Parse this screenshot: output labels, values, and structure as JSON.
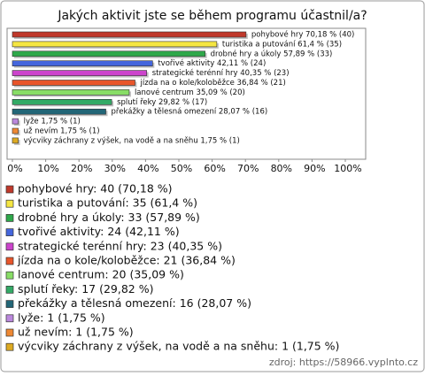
{
  "chart_data": {
    "type": "bar",
    "orientation": "horizontal",
    "title": "Jakých aktivit jste se během programu účastnil/a?",
    "categories": [
      "pohybové hry",
      "turistika a putování",
      "drobné hry a úkoly",
      "tvořivé aktivity",
      "strategické terénní hry",
      "jízda na o kole/koloběžce",
      "lanové centrum",
      "splutí řeky",
      "překážky a tělesná omezení",
      "lyže",
      "už nevím",
      "výcviky záchrany z výšek, na vodě a na sněhu"
    ],
    "values": [
      70.18,
      61.4,
      57.89,
      42.11,
      40.35,
      36.84,
      35.09,
      29.82,
      28.07,
      1.75,
      1.75,
      1.75
    ],
    "value_labels": [
      "pohybové hry 70,18 % (40)",
      "turistika a putování 61,4 % (35)",
      "drobné hry a úkoly 57,89 % (33)",
      "tvořivé aktivity 42,11 % (24)",
      "strategické terénní hry 40,35 % (23)",
      "jízda na o kole/koloběžce 36,84 % (21)",
      "lanové centrum 35,09 % (20)",
      "splutí řeky 29,82 % (17)",
      "překážky a tělesná omezení 28,07 % (16)",
      "lyže 1,75 % (1)",
      "už nevím 1,75 % (1)",
      "výcviky záchrany z výšek, na vodě a na sněhu 1,75 % (1)"
    ],
    "colors": [
      "#c0392b",
      "#f5e642",
      "#2ea84a",
      "#4466dd",
      "#cc44cc",
      "#e8552a",
      "#88dd66",
      "#33aa66",
      "#226677",
      "#bb88dd",
      "#ee8833",
      "#ddaa22"
    ],
    "legend": [
      "pohybové hry: 40 (70,18 %)",
      "turistika a putování: 35 (61,4 %)",
      "drobné hry a úkoly: 33 (57,89 %)",
      "tvořivé aktivity: 24 (42,11 %)",
      "strategické terénní hry: 23 (40,35 %)",
      "jízda na o kole/koloběžce: 21 (36,84 %)",
      "lanové centrum: 20 (35,09 %)",
      "splutí řeky: 17 (29,82 %)",
      "překážky a tělesná omezení: 16 (28,07 %)",
      "lyže: 1 (1,75 %)",
      "už nevím: 1 (1,75 %)",
      "výcviky záchrany z výšek, na vodě a na sněhu: 1 (1,75 %)"
    ],
    "xlim": [
      0,
      100
    ],
    "xticks": [
      {
        "value": 0,
        "label": "0%"
      },
      {
        "value": 10,
        "label": "10%"
      },
      {
        "value": 20,
        "label": "20%"
      },
      {
        "value": 30,
        "label": "30%"
      },
      {
        "value": 40,
        "label": "40%"
      },
      {
        "value": 50,
        "label": "50%"
      },
      {
        "value": 60,
        "label": "60%"
      },
      {
        "value": 70,
        "label": "70%"
      },
      {
        "value": 80,
        "label": "80%"
      },
      {
        "value": 90,
        "label": "90%"
      },
      {
        "value": 100,
        "label": "100%"
      }
    ],
    "source": "zdroj: https://58966.vyplnto.cz"
  }
}
